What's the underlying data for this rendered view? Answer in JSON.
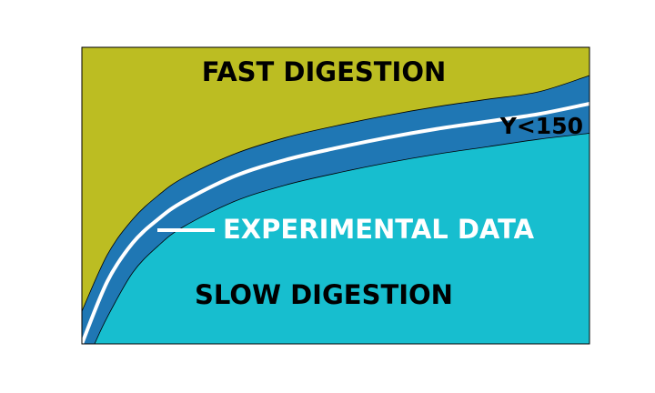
{
  "chart_data": {
    "type": "area",
    "xlim": [
      0,
      1
    ],
    "ylim": [
      0,
      1
    ],
    "grid": false,
    "axes_ticks": false,
    "regions": [
      {
        "name": "fast",
        "label": "FAST DIGESTION",
        "color": "#bcbd22",
        "label_color": "#000000"
      },
      {
        "name": "band",
        "label": "Y<150",
        "color": "#1f77b4",
        "label_color": "#000000"
      },
      {
        "name": "slow",
        "label": "SLOW DIGESTION",
        "color": "#17becf",
        "label_color": "#000000"
      }
    ],
    "series": [
      {
        "name": "upper-boundary",
        "x": [
          0,
          0.05,
          0.1,
          0.15,
          0.2,
          0.3,
          0.4,
          0.5,
          0.6,
          0.7,
          0.8,
          0.9,
          1.0
        ],
        "y": [
          0.11,
          0.3,
          0.42,
          0.5,
          0.56,
          0.64,
          0.695,
          0.735,
          0.77,
          0.8,
          0.825,
          0.85,
          0.905
        ]
      },
      {
        "name": "center-line",
        "x": [
          0,
          0.05,
          0.1,
          0.15,
          0.2,
          0.3,
          0.4,
          0.5,
          0.6,
          0.7,
          0.8,
          0.9,
          1.0
        ],
        "y": [
          0.0,
          0.21,
          0.34,
          0.42,
          0.48,
          0.565,
          0.62,
          0.66,
          0.695,
          0.725,
          0.75,
          0.775,
          0.81
        ]
      },
      {
        "name": "lower-boundary",
        "x": [
          0.025,
          0.05,
          0.1,
          0.15,
          0.2,
          0.3,
          0.4,
          0.5,
          0.6,
          0.7,
          0.8,
          0.9,
          1.0
        ],
        "y": [
          0.0,
          0.09,
          0.24,
          0.33,
          0.395,
          0.48,
          0.535,
          0.575,
          0.61,
          0.64,
          0.665,
          0.69,
          0.71
        ]
      }
    ],
    "legend": {
      "label": "EXPERIMENTAL DATA",
      "line_color": "#ffffff",
      "text_color": "#ffffff",
      "placement": "center-left"
    },
    "axes_edge_color": "#000000"
  }
}
